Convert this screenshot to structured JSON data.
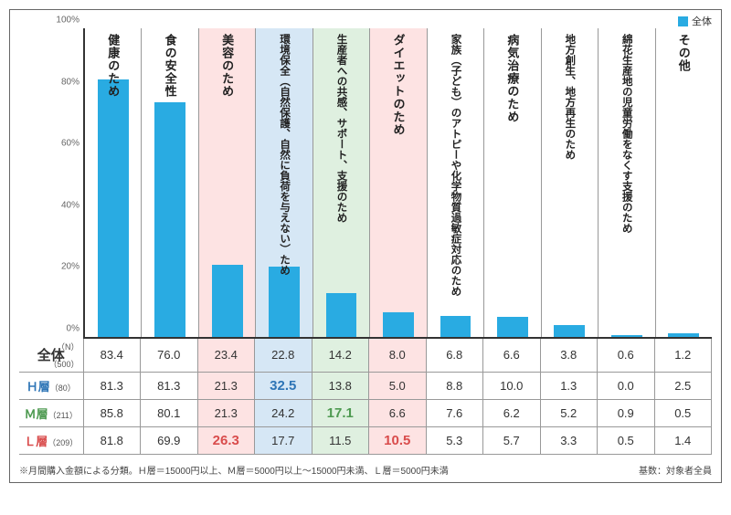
{
  "legend_label": "全体",
  "bar_color": "#29abe2",
  "highlight_colors": {
    "pink": "#fde3e3",
    "blue": "#d6e7f5",
    "green": "#dff0e0"
  },
  "row_label_colors": {
    "H": "#2e75b6",
    "M": "#4e9a51",
    "L": "#d94c4c"
  },
  "yaxis": {
    "max": 100,
    "ticks": [
      0,
      20,
      40,
      60,
      80,
      100
    ]
  },
  "categories": [
    {
      "label": "健康のため",
      "value": 83.4,
      "hl": null,
      "long": false
    },
    {
      "label": "食の安全性",
      "value": 76.0,
      "hl": null,
      "long": false
    },
    {
      "label": "美容のため",
      "value": 23.4,
      "hl": "pink",
      "long": false
    },
    {
      "label": "環境保全（自然保護、自然に負荷を与えない）ため",
      "value": 22.8,
      "hl": "blue",
      "long": true
    },
    {
      "label": "生産者への共感、サポート、支援のため",
      "value": 14.2,
      "hl": "green",
      "long": true
    },
    {
      "label": "ダイエットのため",
      "value": 8.0,
      "hl": "pink",
      "long": false
    },
    {
      "label": "家族（子ども）のアトピーや化学物質過敏症対応のため",
      "value": 6.8,
      "hl": null,
      "long": true
    },
    {
      "label": "病気治療のため",
      "value": 6.6,
      "hl": null,
      "long": false
    },
    {
      "label": "地方創生、地方再生のため",
      "value": 3.8,
      "hl": null,
      "long": true
    },
    {
      "label": "綿花生産地の児童労働をなくす支援のため",
      "value": 0.6,
      "hl": null,
      "long": true
    },
    {
      "label": "その他",
      "value": 1.2,
      "hl": null,
      "long": false
    }
  ],
  "rows": [
    {
      "head": "全体",
      "n": "（500）",
      "nlabel": "（N）",
      "cells": [
        {
          "v": "83.4"
        },
        {
          "v": "76.0"
        },
        {
          "v": "23.4"
        },
        {
          "v": "22.8"
        },
        {
          "v": "14.2"
        },
        {
          "v": "8.0"
        },
        {
          "v": "6.8"
        },
        {
          "v": "6.6"
        },
        {
          "v": "3.8"
        },
        {
          "v": "0.6"
        },
        {
          "v": "1.2"
        }
      ]
    },
    {
      "head": "Ｈ層",
      "n": "（80）",
      "color": "H",
      "cells": [
        {
          "v": "81.3"
        },
        {
          "v": "81.3"
        },
        {
          "v": "21.3"
        },
        {
          "v": "32.5",
          "hl": "blue",
          "b": true
        },
        {
          "v": "13.8"
        },
        {
          "v": "5.0"
        },
        {
          "v": "8.8"
        },
        {
          "v": "10.0"
        },
        {
          "v": "1.3"
        },
        {
          "v": "0.0"
        },
        {
          "v": "2.5"
        }
      ]
    },
    {
      "head": "Ｍ層",
      "n": "（211）",
      "color": "M",
      "cells": [
        {
          "v": "85.8"
        },
        {
          "v": "80.1"
        },
        {
          "v": "21.3"
        },
        {
          "v": "24.2"
        },
        {
          "v": "17.1",
          "hl": "green",
          "b": true
        },
        {
          "v": "6.6"
        },
        {
          "v": "7.6"
        },
        {
          "v": "6.2"
        },
        {
          "v": "5.2"
        },
        {
          "v": "0.9"
        },
        {
          "v": "0.5"
        }
      ]
    },
    {
      "head": "Ｌ層",
      "n": "（209）",
      "color": "L",
      "cells": [
        {
          "v": "81.8"
        },
        {
          "v": "69.9"
        },
        {
          "v": "26.3",
          "hl": "pink",
          "b": true
        },
        {
          "v": "17.7"
        },
        {
          "v": "11.5"
        },
        {
          "v": "10.5",
          "hl": "pink",
          "b": true
        },
        {
          "v": "5.3"
        },
        {
          "v": "5.7"
        },
        {
          "v": "3.3"
        },
        {
          "v": "0.5"
        },
        {
          "v": "1.4"
        }
      ]
    }
  ],
  "footnote_left": "※月間購入金額による分類。Ｈ層＝15000円以上、Ｍ層＝5000円以上～15000円未満、Ｌ層＝5000円未満",
  "footnote_right": "基数：対象者全員"
}
